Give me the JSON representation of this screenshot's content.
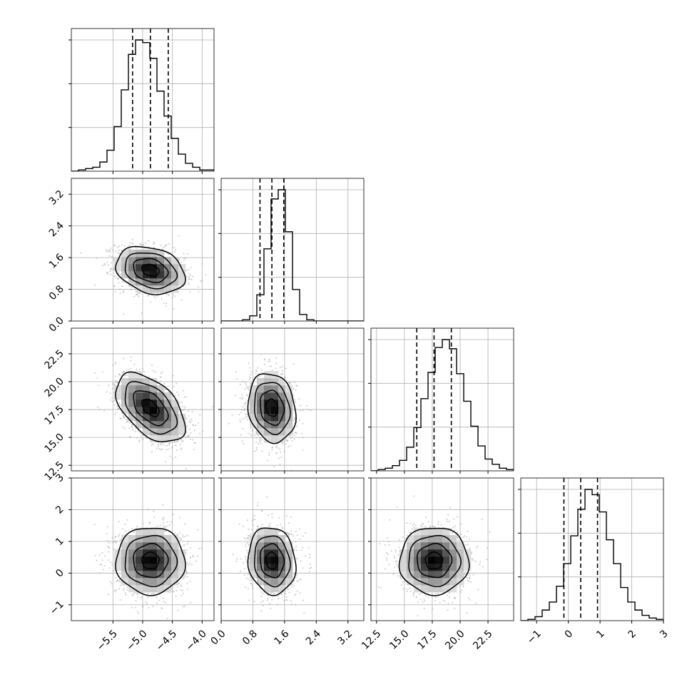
{
  "chart_data": {
    "type": "scatter",
    "variant": "corner-plot",
    "grid": true,
    "legend": "none",
    "colors": {
      "line": "#000000",
      "points": "#a0a0a0",
      "grid": "#b0b0b0",
      "density_dark": "#000000",
      "density_light": "#f2f2f2"
    },
    "parameters": [
      {
        "range": [
          -6.2,
          -3.8
        ],
        "ticks": [
          "−5.5",
          "−5.0",
          "−4.5",
          "−4.0"
        ],
        "tick_values": [
          -5.5,
          -5.0,
          -4.5,
          -4.0
        ],
        "mean": -4.87,
        "sd": 0.29,
        "quantiles": [
          -5.17,
          -4.87,
          -4.57
        ],
        "hist": [
          0,
          1,
          2,
          3,
          7,
          16,
          34,
          62,
          89,
          100,
          98,
          86,
          61,
          42,
          25,
          13,
          6,
          3,
          1,
          1
        ]
      },
      {
        "range": [
          0.0,
          3.6
        ],
        "ticks": [
          "0.0",
          "0.8",
          "1.6",
          "2.4",
          "3.2"
        ],
        "tick_values": [
          0.0,
          0.8,
          1.6,
          2.4,
          3.2
        ],
        "mean": 1.28,
        "sd": 0.3,
        "quantiles": [
          0.98,
          1.28,
          1.58
        ],
        "hist": [
          0,
          0,
          0,
          1,
          4,
          20,
          55,
          93,
          100,
          68,
          24,
          5,
          1,
          0,
          0,
          0,
          0,
          0,
          0,
          0
        ]
      },
      {
        "range": [
          12.0,
          24.8
        ],
        "ticks": [
          "12.5",
          "15.0",
          "17.5",
          "20.0",
          "22.5"
        ],
        "tick_values": [
          12.5,
          15.0,
          17.5,
          20.0,
          22.5
        ],
        "mean": 17.66,
        "sd": 1.55,
        "quantiles": [
          16.11,
          17.66,
          19.21
        ],
        "hist": [
          0,
          1,
          2,
          4,
          8,
          18,
          33,
          55,
          75,
          94,
          100,
          93,
          74,
          53,
          34,
          19,
          9,
          5,
          2,
          1
        ]
      },
      {
        "range": [
          -1.5,
          3.0
        ],
        "ticks": [
          "−1",
          "0",
          "1",
          "2",
          "3"
        ],
        "tick_values": [
          -1,
          0,
          1,
          2,
          3
        ],
        "mean": 0.39,
        "sd": 0.53,
        "quantiles": [
          -0.14,
          0.39,
          0.92
        ],
        "hist": [
          0,
          1,
          3,
          8,
          14,
          26,
          43,
          64,
          84,
          99,
          95,
          82,
          61,
          43,
          25,
          14,
          8,
          4,
          2,
          1
        ]
      }
    ],
    "correlations": [
      {
        "pair": [
          1,
          0
        ],
        "rho": -0.25
      },
      {
        "pair": [
          2,
          0
        ],
        "rho": -0.5
      },
      {
        "pair": [
          2,
          1
        ],
        "rho": -0.15
      },
      {
        "pair": [
          3,
          0
        ],
        "rho": 0.0
      },
      {
        "pair": [
          3,
          1
        ],
        "rho": -0.1
      },
      {
        "pair": [
          3,
          2
        ],
        "rho": 0.0
      }
    ],
    "contour_levels_sigma": [
      0.5,
      1.0,
      1.5,
      2.0
    ]
  }
}
